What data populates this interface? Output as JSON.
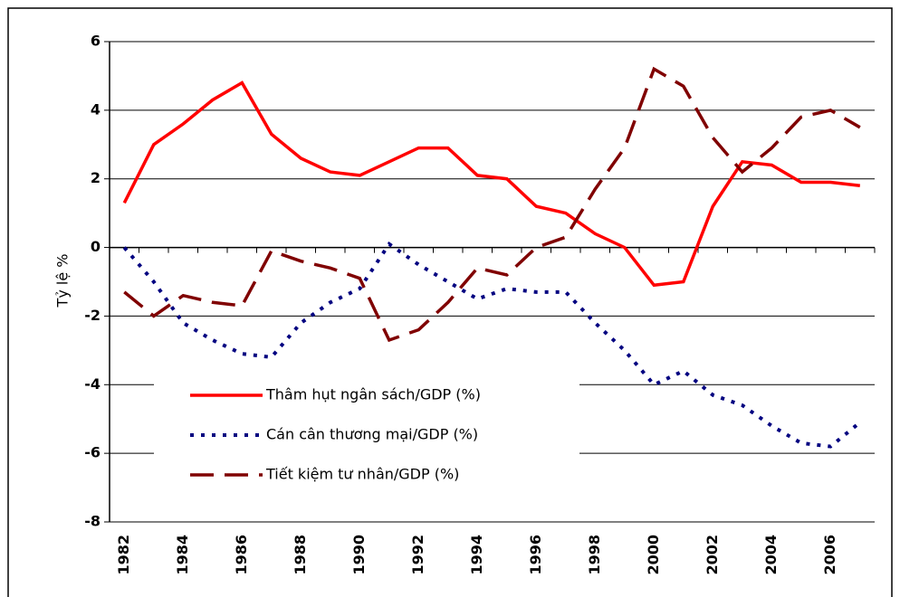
{
  "chart_data": {
    "type": "line",
    "ylabel": "Tỷ lệ %",
    "categories": [
      "1982",
      null,
      "1984",
      null,
      "1986",
      null,
      "1988",
      null,
      "1990",
      null,
      "1992",
      null,
      "1994",
      null,
      "1996",
      null,
      "1998",
      null,
      "2000",
      null,
      "2002",
      null,
      "2004",
      null,
      "2006",
      null
    ],
    "series": [
      {
        "name": "Thâm hụt ngân sách/GDP (%)",
        "color": "#ff0000",
        "style": "solid",
        "values": [
          1.3,
          3.0,
          3.6,
          4.3,
          4.8,
          3.3,
          2.6,
          2.2,
          2.1,
          2.5,
          2.9,
          2.9,
          2.1,
          2.0,
          1.2,
          1.0,
          0.4,
          0.0,
          -1.1,
          -1.0,
          1.2,
          2.5,
          2.4,
          1.9,
          1.9,
          1.8
        ]
      },
      {
        "name": "Cán cân thương mại/GDP (%)",
        "color": "#000080",
        "style": "dotted",
        "values": [
          0.0,
          -1.0,
          -2.2,
          -2.7,
          -3.1,
          -3.2,
          -2.2,
          -1.6,
          -1.2,
          0.1,
          -0.5,
          -1.0,
          -1.5,
          -1.2,
          -1.3,
          -1.3,
          -2.2,
          -3.0,
          -4.0,
          -3.6,
          -4.3,
          -4.6,
          -5.2,
          -5.7,
          -5.8,
          -5.1
        ]
      },
      {
        "name": "Tiết kiệm tư nhân/GDP (%)",
        "color": "#800000",
        "style": "dashed",
        "values": [
          -1.3,
          -2.0,
          -1.4,
          -1.6,
          -1.7,
          -0.1,
          -0.4,
          -0.6,
          -0.9,
          -2.7,
          -2.4,
          -1.6,
          -0.6,
          -0.8,
          0.0,
          0.3,
          1.7,
          2.9,
          5.2,
          4.7,
          3.2,
          2.2,
          2.9,
          3.8,
          4.0,
          3.5
        ]
      }
    ],
    "ylim": [
      -8,
      6
    ],
    "yticks": [
      -8,
      -6,
      -4,
      -2,
      0,
      2,
      4,
      6
    ],
    "grid": true
  }
}
